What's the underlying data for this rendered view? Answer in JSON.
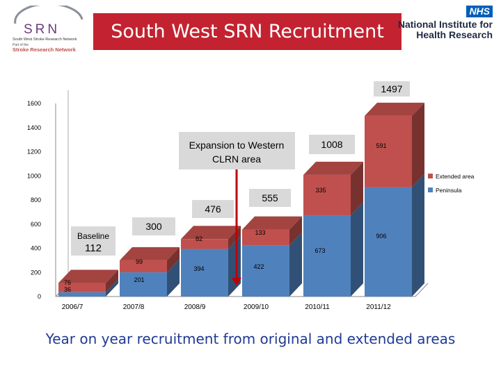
{
  "header": {
    "title": "South West SRN Recruitment",
    "srn_logo": {
      "letters": "SRN",
      "line1": "South West Stroke Research Network",
      "line2": "Part of the",
      "line3": "Stroke Research Network"
    },
    "nihr_logo": {
      "badge": "NHS",
      "line1": "National Institute for",
      "line2": "Health Research"
    }
  },
  "caption": "Year on year recruitment from original and extended areas",
  "colors": {
    "peninsula": "#4f81bd",
    "extended": "#c0504d",
    "title_banner": "#c32230",
    "caption": "#1f3a93"
  },
  "chart_data": {
    "type": "bar",
    "stacked": true,
    "categories": [
      "2006/7",
      "2007/8",
      "2008/9",
      "2009/10",
      "2010/11",
      "2011/12"
    ],
    "series": [
      {
        "name": "Peninsula",
        "values": [
          36,
          201,
          394,
          422,
          673,
          906
        ],
        "labels": [
          "36",
          "201",
          "394",
          "422",
          "673",
          "906"
        ]
      },
      {
        "name": "Extended area",
        "values": [
          76,
          99,
          82,
          133,
          335,
          591
        ],
        "labels": [
          "76",
          "99",
          "82",
          "133",
          "335",
          "591"
        ]
      }
    ],
    "totals": [
      {
        "category": "2006/7",
        "prefix": "Baseline",
        "value": "112"
      },
      {
        "category": "2007/8",
        "value": "300"
      },
      {
        "category": "2008/9",
        "value": "476"
      },
      {
        "category": "2009/10",
        "value": "555"
      },
      {
        "category": "2010/11",
        "value": "1008"
      },
      {
        "category": "2011/12",
        "value": "1497"
      }
    ],
    "yticks": [
      0,
      200,
      400,
      600,
      800,
      1000,
      1200,
      1400,
      1600
    ],
    "ylim": [
      0,
      1600
    ],
    "legend": {
      "position": "right",
      "entries": [
        "Extended area",
        "Peninsula"
      ]
    },
    "annotation": {
      "text_line1": "Expansion to Western",
      "text_line2": "CLRN area",
      "arrow_at": "2008/9 to 2009/10"
    }
  }
}
